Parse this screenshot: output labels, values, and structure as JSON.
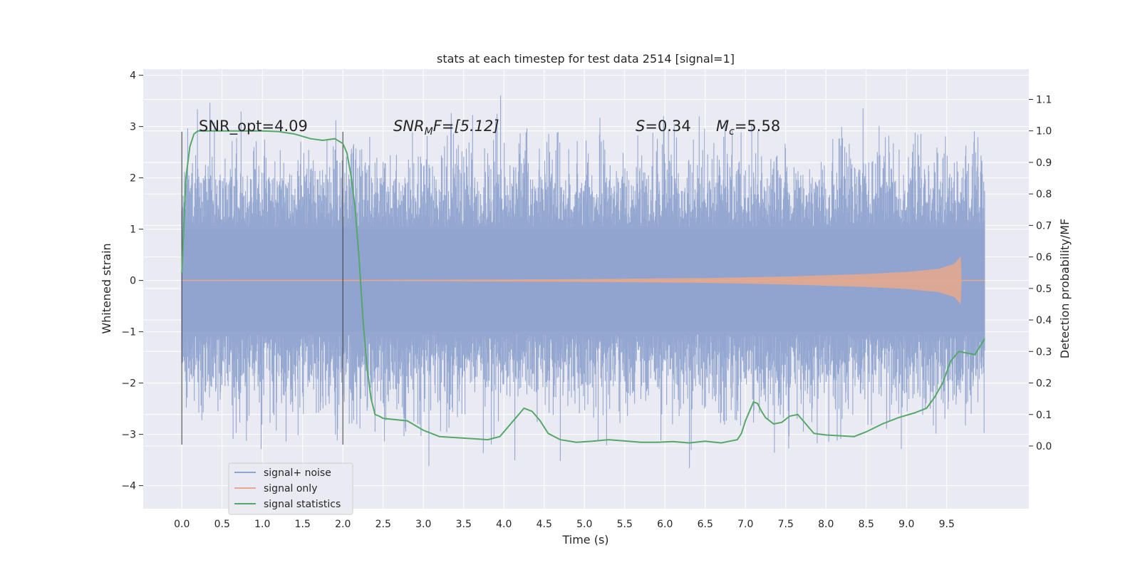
{
  "chart_data": {
    "type": "line",
    "title": "stats at each timestep for test data 2514 [signal=1]",
    "xlabel": "Time (s)",
    "ylabel": "Whitened strain",
    "y2label": "Detection probability/MF",
    "xlim": [
      -0.48,
      10.52
    ],
    "ylim": [
      -4.45,
      4.12
    ],
    "y2lim": [
      -0.199,
      1.196
    ],
    "x_ticks": [
      0.0,
      0.5,
      1.0,
      1.5,
      2.0,
      2.5,
      3.0,
      3.5,
      4.0,
      4.5,
      5.0,
      5.5,
      6.0,
      6.5,
      7.0,
      7.5,
      8.0,
      8.5,
      9.0,
      9.5
    ],
    "x_tick_labels": [
      "0.0",
      "0.5",
      "1.0",
      "1.5",
      "2.0",
      "2.5",
      "3.0",
      "3.5",
      "4.0",
      "4.5",
      "5.0",
      "5.5",
      "6.0",
      "6.5",
      "7.0",
      "7.5",
      "8.0",
      "8.5",
      "9.0",
      "9.5"
    ],
    "y_ticks": [
      4,
      3,
      2,
      1,
      0,
      -1,
      -2,
      -3,
      -4
    ],
    "y_tick_labels": [
      "4",
      "3",
      "2",
      "1",
      "0",
      "−1",
      "−2",
      "−3",
      "−4"
    ],
    "y2_ticks": [
      1.1,
      1.0,
      0.9,
      0.8,
      0.7,
      0.6,
      0.5,
      0.4,
      0.3,
      0.2,
      0.1,
      0.0
    ],
    "y2_tick_labels": [
      "1.1",
      "1.0",
      "0.9",
      "0.8",
      "0.7",
      "0.6",
      "0.5",
      "0.4",
      "0.3",
      "0.2",
      "0.1",
      "0.0"
    ],
    "grid": true,
    "legend_position": "lower-left",
    "annotations": {
      "snr_opt": "SNR_opt=4.09",
      "snr_mf_main": "SNR",
      "snr_mf_sub": "M",
      "snr_mf_rest": "F=[5.12]",
      "s_label": "S",
      "s_value": "=0.34",
      "mc_main": "M",
      "mc_sub": "c",
      "mc_value": "=5.58"
    },
    "vertical_markers": [
      0.0,
      2.0
    ],
    "series": [
      {
        "name": "signal+ noise",
        "color": "#8fa3cf",
        "description_of_data": "noise-dominated whitened strain from 0 to 10 s",
        "x_range": [
          0.0,
          9.97
        ],
        "core_band": [
          -1.0,
          1.0
        ],
        "peak_envelope": [
          -4.1,
          3.75
        ]
      },
      {
        "name": "signal only",
        "color": "#e8a98a",
        "x": [
          0.0,
          3.0,
          5.0,
          6.5,
          7.5,
          8.5,
          9.0,
          9.4,
          9.6,
          9.67,
          9.68
        ],
        "amplitude": [
          0.0,
          0.005,
          0.02,
          0.04,
          0.07,
          0.12,
          0.16,
          0.22,
          0.32,
          0.45,
          0.0
        ]
      },
      {
        "name": "signal statistics",
        "color": "#55a868",
        "x": [
          0.0,
          0.05,
          0.1,
          0.15,
          0.2,
          0.3,
          0.5,
          0.8,
          1.0,
          1.2,
          1.4,
          1.6,
          1.75,
          1.9,
          2.0,
          2.05,
          2.1,
          2.15,
          2.2,
          2.25,
          2.3,
          2.35,
          2.4,
          2.45,
          2.5,
          2.6,
          2.8,
          3.0,
          3.2,
          3.5,
          3.8,
          3.95,
          4.05,
          4.15,
          4.25,
          4.35,
          4.45,
          4.55,
          4.7,
          4.9,
          5.1,
          5.3,
          5.5,
          5.7,
          5.9,
          6.1,
          6.3,
          6.5,
          6.7,
          6.9,
          6.95,
          7.0,
          7.05,
          7.1,
          7.15,
          7.2,
          7.25,
          7.35,
          7.45,
          7.55,
          7.65,
          7.75,
          7.85,
          8.0,
          8.2,
          8.35,
          8.5,
          8.7,
          8.9,
          9.1,
          9.25,
          9.35,
          9.45,
          9.55,
          9.65,
          9.75,
          9.85,
          9.97
        ],
        "values": [
          0.55,
          0.85,
          0.95,
          0.99,
          1.0,
          1.0,
          1.0,
          1.0,
          1.0,
          0.998,
          0.99,
          0.975,
          0.97,
          0.975,
          0.96,
          0.93,
          0.86,
          0.76,
          0.6,
          0.4,
          0.25,
          0.15,
          0.1,
          0.095,
          0.088,
          0.085,
          0.08,
          0.05,
          0.03,
          0.025,
          0.02,
          0.03,
          0.06,
          0.09,
          0.12,
          0.11,
          0.08,
          0.04,
          0.02,
          0.012,
          0.015,
          0.02,
          0.016,
          0.012,
          0.012,
          0.014,
          0.01,
          0.015,
          0.01,
          0.02,
          0.04,
          0.08,
          0.11,
          0.14,
          0.135,
          0.11,
          0.09,
          0.07,
          0.075,
          0.095,
          0.1,
          0.07,
          0.04,
          0.035,
          0.032,
          0.03,
          0.045,
          0.07,
          0.09,
          0.105,
          0.12,
          0.155,
          0.2,
          0.27,
          0.3,
          0.295,
          0.29,
          0.34
        ]
      }
    ]
  }
}
